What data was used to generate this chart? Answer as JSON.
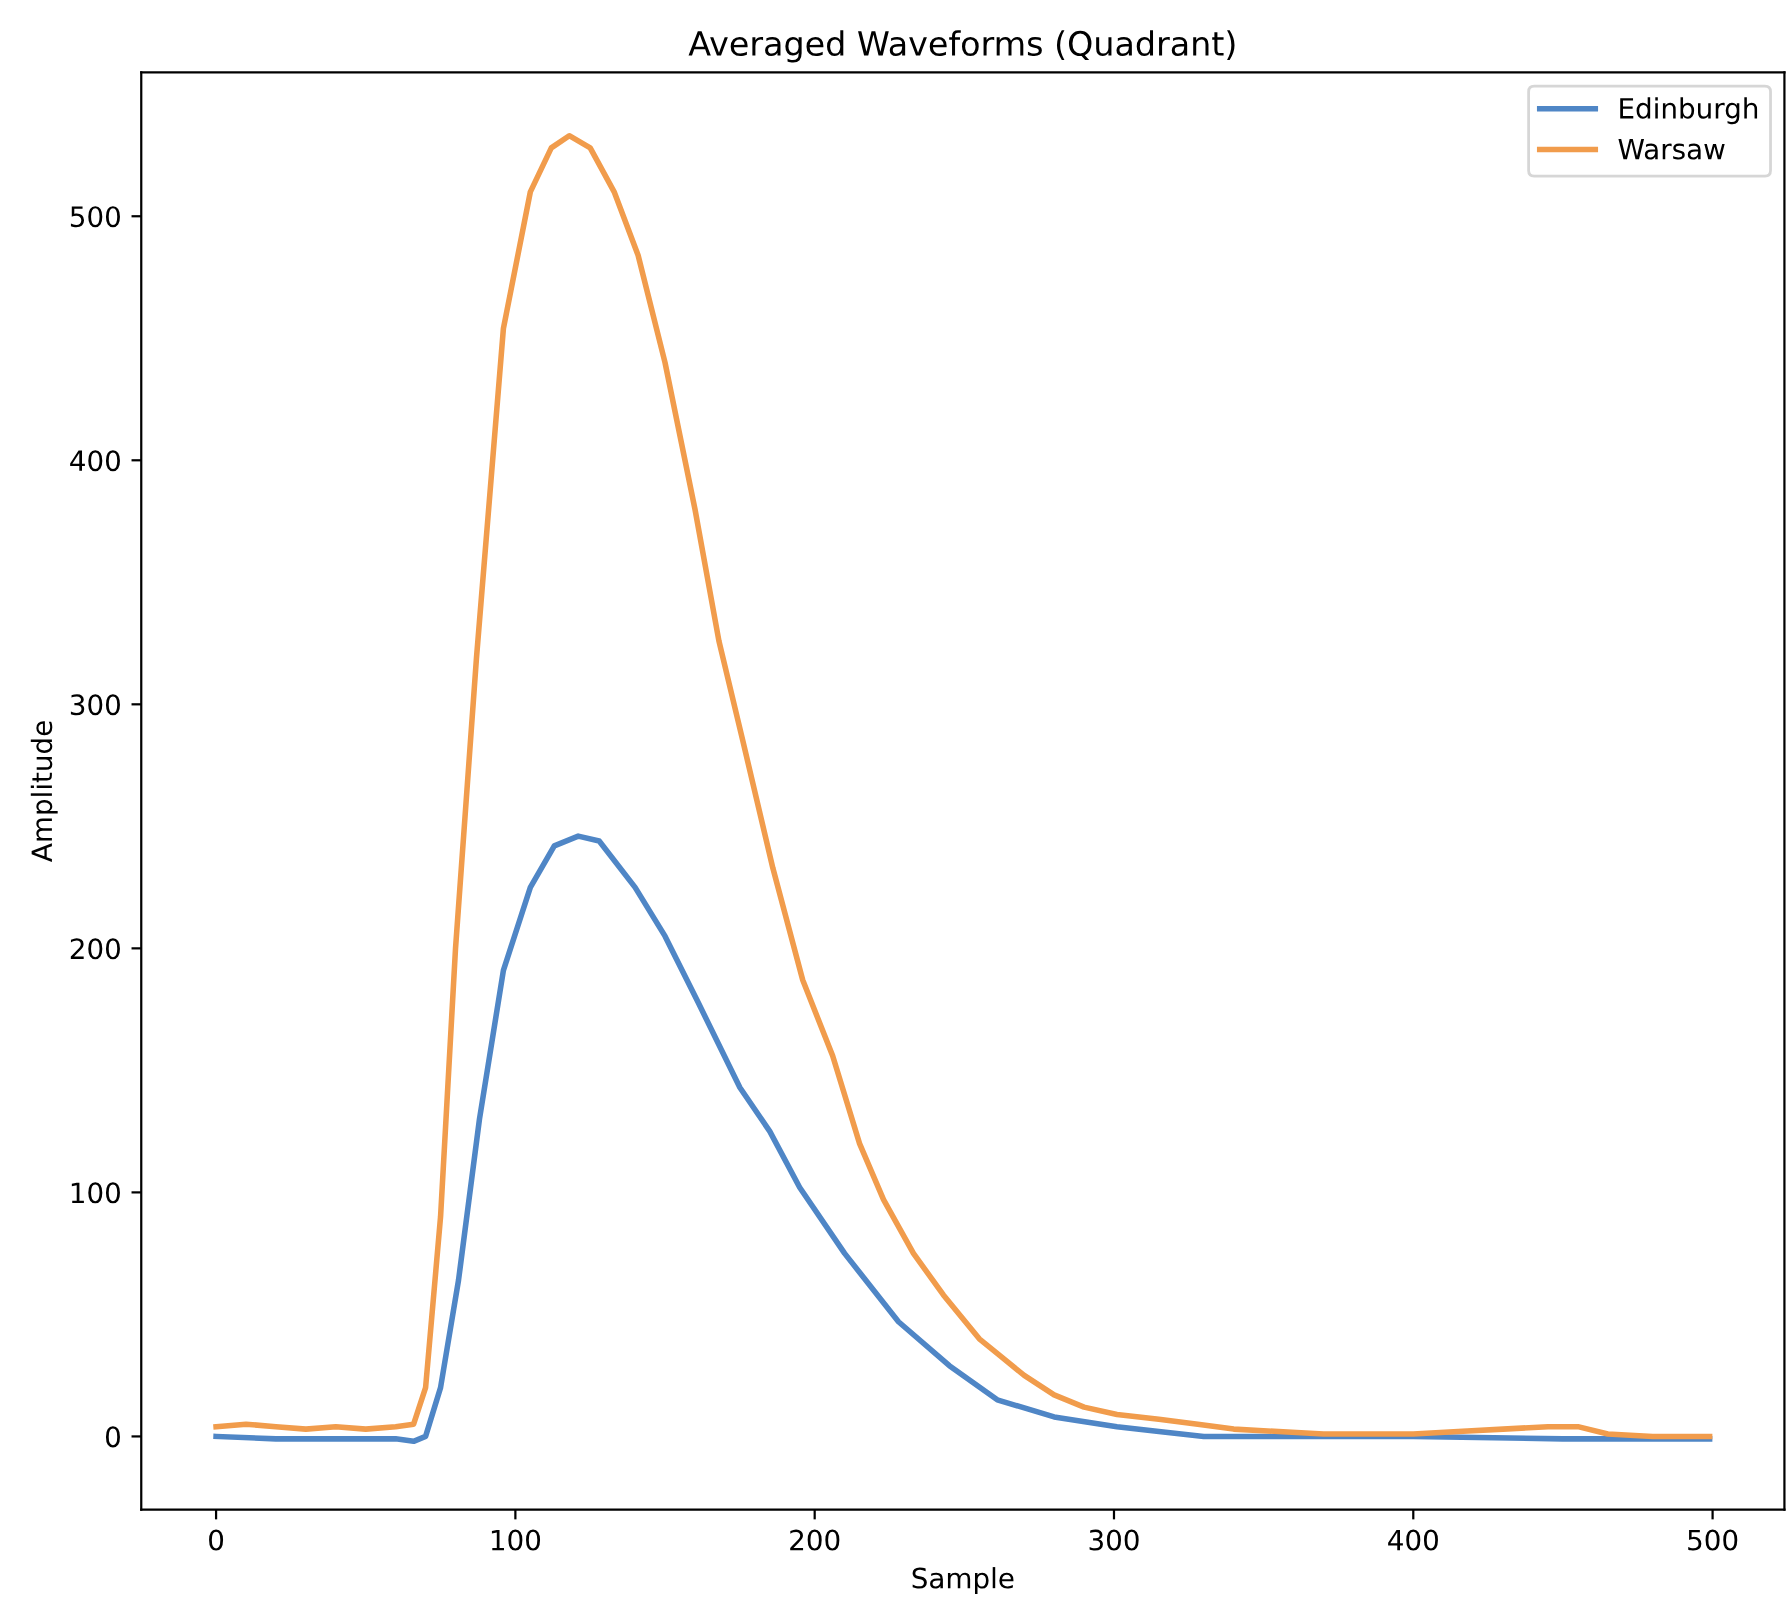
{
  "chart_data": {
    "type": "line",
    "title": "Averaged Waveforms (Quadrant)",
    "xlabel": "Sample",
    "ylabel": "Amplitude",
    "xlim": [
      -25,
      524
    ],
    "ylim": [
      -30,
      559
    ],
    "xticks": [
      0,
      100,
      200,
      300,
      400,
      500
    ],
    "yticks": [
      0,
      100,
      200,
      300,
      400,
      500
    ],
    "grid": false,
    "legend": "top right",
    "series": [
      {
        "name": "Edinburgh",
        "color": "#4f86c6",
        "x": [
          0,
          20,
          40,
          60,
          66,
          70,
          75,
          81,
          88,
          96,
          105,
          113,
          121,
          128,
          140,
          150,
          161,
          175,
          185,
          195,
          210,
          228,
          245,
          261,
          280,
          301,
          315,
          330,
          360,
          400,
          450,
          499
        ],
        "values": [
          0,
          -1,
          -1,
          -1,
          -2,
          0,
          20,
          64,
          130,
          191,
          225,
          242,
          246,
          244,
          225,
          205,
          178,
          143,
          125,
          102,
          75,
          47,
          29,
          15,
          8,
          4,
          2,
          0,
          0,
          0,
          -1,
          -1
        ]
      },
      {
        "name": "Warsaw",
        "color": "#f19c4c",
        "x": [
          0,
          10,
          20,
          30,
          40,
          50,
          60,
          66,
          70,
          75,
          80,
          87,
          96,
          105,
          112,
          118,
          125,
          133,
          141,
          150,
          160,
          168,
          176,
          186,
          196,
          206,
          215,
          223,
          233,
          243,
          255,
          262,
          270,
          280,
          290,
          301,
          315,
          328,
          340,
          355,
          370,
          385,
          400,
          415,
          430,
          445,
          455,
          465,
          480,
          499
        ],
        "values": [
          4,
          5,
          4,
          3,
          4,
          3,
          4,
          5,
          20,
          90,
          200,
          319,
          454,
          510,
          528,
          533,
          528,
          510,
          484,
          440,
          380,
          326,
          285,
          233,
          187,
          156,
          120,
          97,
          75,
          58,
          40,
          33,
          25,
          17,
          12,
          9,
          7,
          5,
          3,
          2,
          1,
          1,
          1,
          2,
          3,
          4,
          4,
          1,
          0,
          0
        ]
      }
    ]
  }
}
